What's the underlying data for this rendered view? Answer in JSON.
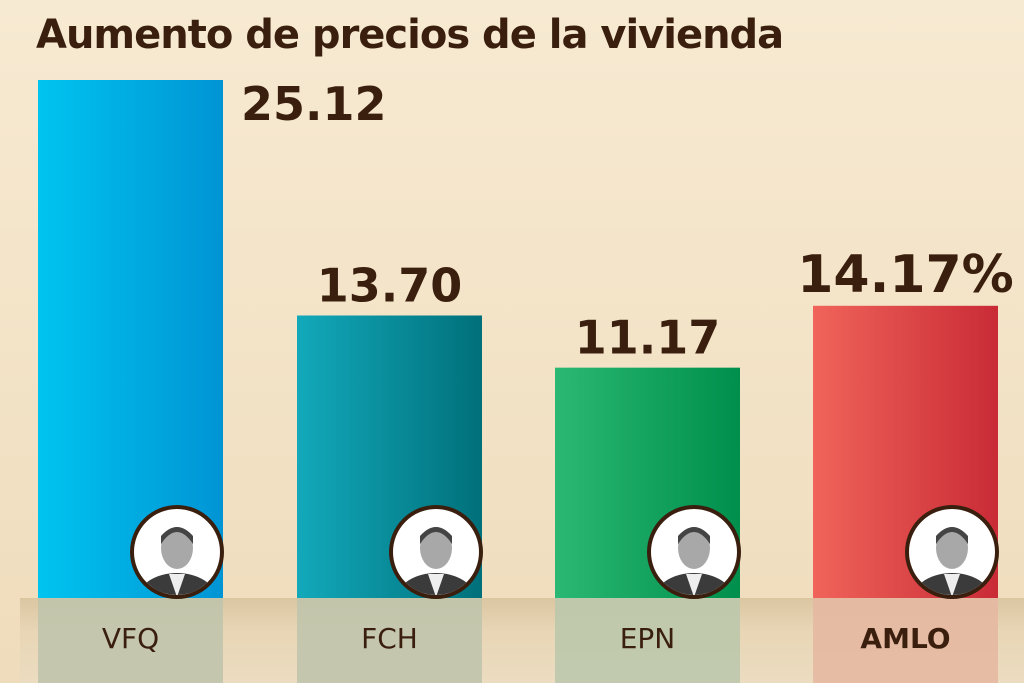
{
  "chart_data": {
    "type": "bar",
    "title": "Aumento de precios de la vivienda",
    "categories": [
      "VFQ",
      "FCH",
      "EPN",
      "AMLO"
    ],
    "values": [
      25.12,
      13.7,
      11.17,
      14.17
    ],
    "data_labels": [
      "25.12",
      "13.70",
      "11.17",
      "14.17%"
    ],
    "highlight_category": "AMLO",
    "ylim": [
      0,
      25.12
    ],
    "grid": false,
    "bar_colors": [
      [
        "#00c4f0",
        "#0094d4"
      ],
      [
        "#12a9bb",
        "#00707a"
      ],
      [
        "#2ab872",
        "#008f4c"
      ],
      [
        "#f0645a",
        "#c92b36"
      ]
    ],
    "label_band_colors": [
      "#c0c4ac",
      "#c0c4ac",
      "#bcc8ac",
      "#e6b8a2"
    ],
    "portrait_icons": [
      "portrait-vfq-icon",
      "portrait-fch-icon",
      "portrait-epn-icon",
      "portrait-amlo-icon"
    ]
  }
}
